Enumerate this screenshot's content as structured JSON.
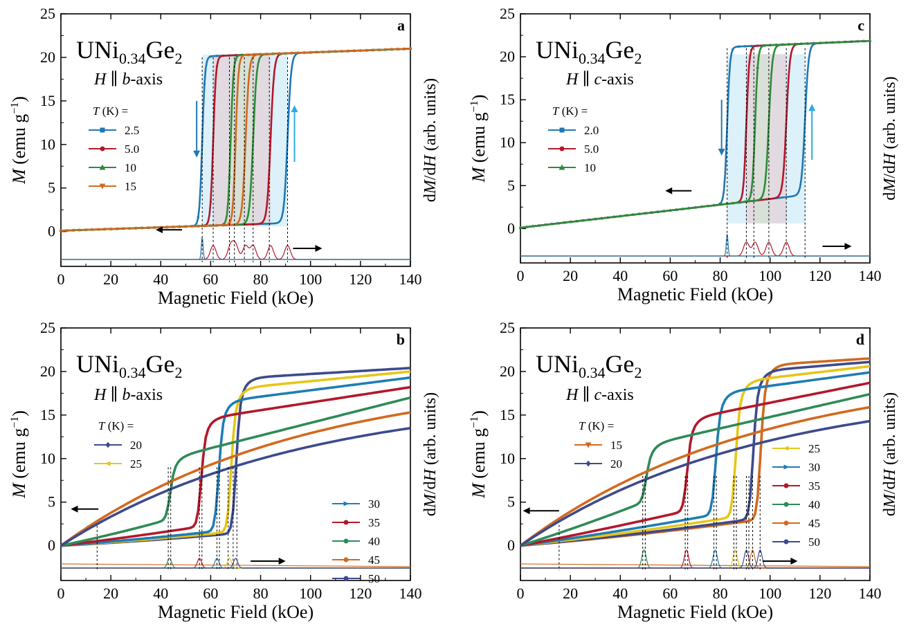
{
  "chart_data": [
    {
      "type": "line",
      "panel": "a",
      "title": "UNi0.34Ge2",
      "field_note": "H || b-axis",
      "xlabel": "Magnetic Field (kOe)",
      "ylabel": "M (emu g^-1)",
      "ylabel_right": "dM/dH (arb. units)",
      "xlim": [
        0,
        140
      ],
      "ylim": [
        -4,
        25
      ],
      "xticks": [
        0,
        20,
        40,
        60,
        80,
        100,
        120,
        140
      ],
      "yticks": [
        0,
        5,
        10,
        15,
        20,
        25
      ],
      "legend_title": "T (K) =",
      "legend_position": "upper-left",
      "series": [
        {
          "name": "2.5",
          "color": "#1f78b4",
          "marker": "square",
          "dn": 56.6,
          "up": 90.8,
          "lo": [
            0.1,
            0.6
          ],
          "hi": [
            20.1,
            20.9
          ]
        },
        {
          "name": "5.0",
          "color": "#b2182b",
          "marker": "circle",
          "dn": 61.0,
          "up": 84.0,
          "lo": [
            0.1,
            0.6
          ],
          "hi": [
            20.2,
            20.9
          ]
        },
        {
          "name": "10",
          "color": "#2e8b3a",
          "marker": "triangle-up",
          "dn": 68.0,
          "up": 77.0,
          "lo": [
            0.1,
            0.6
          ],
          "hi": [
            20.2,
            20.8
          ]
        },
        {
          "name": "15",
          "color": "#d2691e",
          "marker": "triangle-down",
          "dn": 70.0,
          "up": 74.0,
          "lo": [
            0.1,
            0.6
          ],
          "hi": [
            20.2,
            20.7
          ]
        }
      ],
      "extra_loops": [
        {
          "color": "#29abe2",
          "dn": 56.6,
          "up": 90.8
        },
        {
          "color": "#e0408a",
          "dn": 61.0,
          "up": 84.0
        },
        {
          "color": "#8bc34a",
          "dn": 68.0,
          "up": 77.0
        }
      ],
      "dmdh_peaks": [
        56.6,
        61.0,
        68.0,
        70.0,
        74.0,
        77.0,
        84.0,
        90.8
      ],
      "vlines": [
        56.6,
        61.0,
        67.5,
        69.5,
        73.5,
        77.0,
        83.5,
        90.8
      ]
    },
    {
      "type": "line",
      "panel": "b",
      "title": "UNi0.34Ge2",
      "field_note": "H || b-axis",
      "xlabel": "Magnetic Field (kOe)",
      "ylabel": "M (emu g^-1)",
      "ylabel_right": "dM/dH (arb. units)",
      "xlim": [
        0,
        140
      ],
      "ylim": [
        -4,
        25
      ],
      "xticks": [
        0,
        20,
        40,
        60,
        80,
        100,
        120,
        140
      ],
      "yticks": [
        0,
        5,
        10,
        15,
        20,
        25
      ],
      "legend_title": "T (K) =",
      "series": [
        {
          "name": "20",
          "color": "#3d4a8c",
          "marker": "diamond",
          "Hc": 70.0,
          "lo_slope": 0.015,
          "hi": [
            19.2,
            20.4
          ]
        },
        {
          "name": "25",
          "color": "#e6c619",
          "marker": "left-triangle",
          "Hc": 68.0,
          "lo_slope": 0.018,
          "hi": [
            18.0,
            20.0
          ]
        },
        {
          "name": "30",
          "color": "#1f7db4",
          "marker": "right-triangle",
          "Hc": 63.0,
          "lo_slope": 0.022,
          "hi": [
            16.5,
            19.3
          ]
        },
        {
          "name": "35",
          "color": "#b2182b",
          "marker": "circle",
          "Hc": 56.0,
          "lo_slope": 0.035,
          "hi": [
            14.5,
            18.2
          ]
        },
        {
          "name": "40",
          "color": "#2e8b57",
          "marker": "star",
          "Hc": 43.5,
          "lo_slope": 0.06,
          "hi": [
            10.0,
            17.0
          ]
        },
        {
          "name": "45",
          "color": "#d2691e",
          "marker": "hexagon",
          "Hc": 0,
          "hi": [
            0,
            15.3
          ]
        },
        {
          "name": "50",
          "color": "#3d4a8c",
          "marker": "pentagon",
          "Hc": 0,
          "hi": [
            0,
            13.5
          ]
        }
      ],
      "dmdh_peaks": [
        43.5,
        55.5,
        62.5,
        67.5,
        70.0
      ],
      "vlines": [
        14.5,
        43.0,
        44.0,
        55.5,
        56.5,
        62.5,
        63.5,
        67.0,
        69.0,
        70.5
      ]
    },
    {
      "type": "line",
      "panel": "c",
      "title": "UNi0.34Ge2",
      "field_note": "H || c-axis",
      "xlabel": "Magnetic Field (kOe)",
      "ylabel": "M (emu g^-1)",
      "ylabel_right": "dM/dH (arb. units)",
      "xlim": [
        0,
        140
      ],
      "ylim": [
        -4,
        25
      ],
      "xticks": [
        0,
        20,
        40,
        60,
        80,
        100,
        120,
        140
      ],
      "yticks": [
        0,
        5,
        10,
        15,
        20,
        25
      ],
      "legend_title": "T (K) =",
      "series": [
        {
          "name": "2.0",
          "color": "#1f78b4",
          "marker": "square",
          "dn": 82.8,
          "up": 114.0
        },
        {
          "name": "5.0",
          "color": "#b2182b",
          "marker": "circle",
          "dn": 90.5,
          "up": 106.5
        },
        {
          "name": "10",
          "color": "#2e8b3a",
          "marker": "triangle-up",
          "dn": 94.0,
          "up": 99.5
        }
      ],
      "extra_loops": [
        {
          "color": "#29abe2",
          "dn": 82.8,
          "up": 114.0
        },
        {
          "color": "#e0408a",
          "dn": 90.5,
          "up": 106.5
        },
        {
          "color": "#8bc34a",
          "dn": 94.0,
          "up": 99.5
        }
      ],
      "dmdh_peaks": [
        82.8,
        90.5,
        94.0,
        99.5,
        106.5
      ],
      "vlines": [
        82.8,
        90.5,
        93.5,
        99.5,
        106.5,
        114.0
      ]
    },
    {
      "type": "line",
      "panel": "d",
      "title": "UNi0.34Ge2",
      "field_note": "H || c-axis",
      "xlabel": "Magnetic Field (kOe)",
      "ylabel": "M (emu g^-1)",
      "ylabel_right": "dM/dH (arb. units)",
      "xlim": [
        0,
        140
      ],
      "ylim": [
        -4,
        25
      ],
      "xticks": [
        0,
        20,
        40,
        60,
        80,
        100,
        120,
        140
      ],
      "yticks": [
        0,
        5,
        10,
        15,
        20,
        25
      ],
      "legend_title": "T (K) =",
      "series": [
        {
          "name": "15",
          "color": "#d2691e",
          "marker": "triangle-down",
          "Hc": 96.0,
          "lo_slope": 0.024,
          "hi": [
            20.7,
            21.5
          ]
        },
        {
          "name": "20",
          "color": "#3d4a8c",
          "marker": "diamond",
          "Hc": 93.0,
          "lo_slope": 0.026,
          "hi": [
            20.0,
            21.1
          ]
        },
        {
          "name": "25",
          "color": "#e6c619",
          "marker": "left-triangle",
          "Hc": 86.0,
          "lo_slope": 0.032,
          "hi": [
            18.8,
            20.6
          ]
        },
        {
          "name": "30",
          "color": "#1f7db4",
          "marker": "right-triangle",
          "Hc": 78.0,
          "lo_slope": 0.04,
          "hi": [
            17.5,
            19.9
          ]
        },
        {
          "name": "35",
          "color": "#b2182b",
          "marker": "circle",
          "Hc": 66.5,
          "lo_slope": 0.055,
          "hi": [
            14.5,
            18.7
          ]
        },
        {
          "name": "40",
          "color": "#2e8b57",
          "marker": "star",
          "Hc": 50.0,
          "lo_slope": 0.09,
          "hi": [
            11.5,
            17.4
          ]
        },
        {
          "name": "45",
          "color": "#d2691e",
          "marker": "hexagon",
          "Hc": 0,
          "hi": [
            0,
            15.9
          ]
        },
        {
          "name": "50",
          "color": "#3d4a8c",
          "marker": "pentagon",
          "Hc": 0,
          "hi": [
            0,
            14.3
          ]
        }
      ],
      "dmdh_peaks": [
        49.5,
        66.5,
        78.0,
        86.0,
        90.5,
        93.0,
        96.0
      ],
      "vlines": [
        15.5,
        49.0,
        50.0,
        66.0,
        67.0,
        77.5,
        78.5,
        85.5,
        86.5,
        90.5,
        91.5,
        93.0,
        96.0
      ]
    }
  ]
}
